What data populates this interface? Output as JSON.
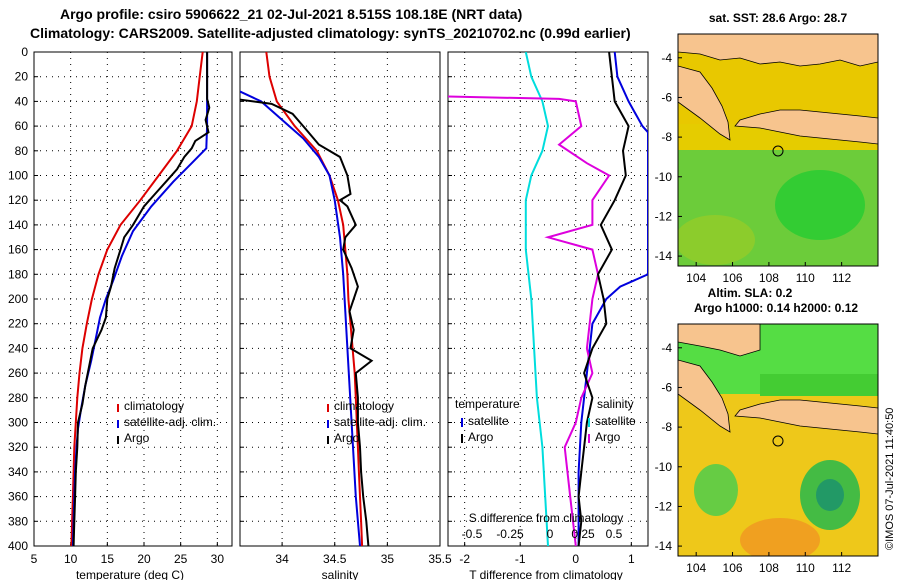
{
  "title": {
    "line1": "Argo profile: csiro 5906622_21 02-Jul-2021 8.515S 108.18E (NRT data)",
    "line2": "Climatology: CARS2009. Satellite-adjusted climatology: synTS_20210702.nc (0.99d earlier)"
  },
  "colors": {
    "climatology": "#dd0000",
    "satellite": "#0000dd",
    "argo": "#000000",
    "t_diff": "#dd00dd",
    "s_diff": "#00dddd",
    "land": "#f7c48e"
  },
  "depth_axis": {
    "ylim": [
      0,
      400
    ],
    "ticks": [
      "0",
      "20",
      "40",
      "60",
      "80",
      "100",
      "120",
      "140",
      "160",
      "180",
      "200",
      "220",
      "240",
      "260",
      "280",
      "300",
      "320",
      "340",
      "360",
      "380",
      "400"
    ]
  },
  "chart_data": [
    {
      "type": "line",
      "id": "temperature",
      "xlabel": "temperature (deg C)",
      "xlim": [
        5,
        32
      ],
      "xticks": [
        "5",
        "10",
        "15",
        "20",
        "25",
        "30"
      ],
      "xtick_values": [
        5,
        10,
        15,
        20,
        25,
        30
      ],
      "legend": [
        "climatology",
        "satellite-adj. clim.",
        "Argo"
      ],
      "series": [
        {
          "name": "climatology",
          "color": "#dd0000",
          "points": [
            [
              28,
              0
            ],
            [
              27.6,
              20
            ],
            [
              27.2,
              40
            ],
            [
              26.5,
              60
            ],
            [
              24.5,
              80
            ],
            [
              22,
              100
            ],
            [
              19.5,
              120
            ],
            [
              16.8,
              140
            ],
            [
              15,
              160
            ],
            [
              13.8,
              180
            ],
            [
              12.9,
              200
            ],
            [
              12.2,
              220
            ],
            [
              11.6,
              240
            ],
            [
              11.2,
              260
            ],
            [
              10.9,
              280
            ],
            [
              10.7,
              300
            ],
            [
              10.5,
              320
            ],
            [
              10.4,
              340
            ],
            [
              10.3,
              360
            ],
            [
              10.2,
              380
            ],
            [
              10.1,
              400
            ]
          ]
        },
        {
          "name": "satellite-adj. clim.",
          "color": "#0000dd",
          "points": [
            [
              28.6,
              0
            ],
            [
              28.6,
              20
            ],
            [
              28.6,
              40
            ],
            [
              28.6,
              60
            ],
            [
              28.5,
              78
            ],
            [
              26.5,
              90
            ],
            [
              24,
              105
            ],
            [
              21,
              125
            ],
            [
              18.5,
              145
            ],
            [
              17,
              165
            ],
            [
              15.8,
              185
            ],
            [
              14.8,
              200
            ],
            [
              14,
              215
            ],
            [
              13.5,
              230
            ],
            [
              12.8,
              250
            ],
            [
              12,
              270
            ],
            [
              11.4,
              290
            ],
            [
              11,
              305
            ],
            [
              10.8,
              320
            ],
            [
              10.6,
              340
            ],
            [
              10.5,
              360
            ],
            [
              10.4,
              380
            ],
            [
              10.3,
              400
            ]
          ]
        },
        {
          "name": "Argo",
          "color": "#000000",
          "points": [
            [
              28.6,
              0
            ],
            [
              28.6,
              20
            ],
            [
              28.6,
              38
            ],
            [
              28.9,
              45
            ],
            [
              28.4,
              55
            ],
            [
              28.8,
              65
            ],
            [
              27,
              72
            ],
            [
              26.5,
              78
            ],
            [
              25.5,
              85
            ],
            [
              24.5,
              95
            ],
            [
              23,
              105
            ],
            [
              21.5,
              115
            ],
            [
              20,
              125
            ],
            [
              18.5,
              140
            ],
            [
              17.3,
              150
            ],
            [
              16.8,
              160
            ],
            [
              16,
              175
            ],
            [
              15.5,
              190
            ],
            [
              15,
              200
            ],
            [
              14.8,
              215
            ],
            [
              14.2,
              225
            ],
            [
              13,
              240
            ],
            [
              12.5,
              255
            ],
            [
              12,
              270
            ],
            [
              11.6,
              285
            ],
            [
              11,
              300
            ],
            [
              10.9,
              320
            ],
            [
              10.7,
              340
            ],
            [
              10.6,
              360
            ],
            [
              10.5,
              380
            ],
            [
              10.4,
              400
            ]
          ]
        }
      ]
    },
    {
      "type": "line",
      "id": "salinity",
      "xlabel": "salinity",
      "xlim": [
        33.6,
        35.5
      ],
      "xticks": [
        "34",
        "34.5",
        "35",
        "35.5"
      ],
      "xtick_values": [
        34,
        34.5,
        35,
        35.5
      ],
      "legend": [
        "climatology",
        "satellite-adj. clim.",
        "Argo"
      ],
      "series": [
        {
          "name": "climatology",
          "color": "#dd0000",
          "points": [
            [
              33.85,
              0
            ],
            [
              33.88,
              20
            ],
            [
              33.95,
              40
            ],
            [
              34.12,
              60
            ],
            [
              34.33,
              80
            ],
            [
              34.45,
              100
            ],
            [
              34.53,
              120
            ],
            [
              34.58,
              140
            ],
            [
              34.6,
              160
            ],
            [
              34.62,
              180
            ],
            [
              34.63,
              200
            ],
            [
              34.65,
              220
            ],
            [
              34.67,
              240
            ],
            [
              34.69,
              260
            ],
            [
              34.7,
              280
            ],
            [
              34.71,
              300
            ],
            [
              34.72,
              320
            ],
            [
              34.73,
              340
            ],
            [
              34.74,
              360
            ],
            [
              34.75,
              380
            ],
            [
              34.76,
              400
            ]
          ]
        },
        {
          "name": "satellite-adj. clim.",
          "color": "#0000dd",
          "points": [
            [
              33.55,
              30
            ],
            [
              33.8,
              40
            ],
            [
              34.0,
              55
            ],
            [
              34.2,
              70
            ],
            [
              34.35,
              85
            ],
            [
              34.45,
              100
            ],
            [
              34.5,
              120
            ],
            [
              34.55,
              150
            ],
            [
              34.58,
              180
            ],
            [
              34.6,
              210
            ],
            [
              34.62,
              240
            ],
            [
              34.64,
              270
            ],
            [
              34.66,
              300
            ],
            [
              34.68,
              330
            ],
            [
              34.7,
              360
            ],
            [
              34.72,
              380
            ],
            [
              34.74,
              400
            ]
          ]
        },
        {
          "name": "Argo",
          "color": "#000000",
          "points": [
            [
              33.55,
              38
            ],
            [
              33.9,
              42
            ],
            [
              34.1,
              50
            ],
            [
              34.2,
              60
            ],
            [
              34.35,
              75
            ],
            [
              34.55,
              85
            ],
            [
              34.62,
              100
            ],
            [
              34.65,
              115
            ],
            [
              34.55,
              120
            ],
            [
              34.62,
              125
            ],
            [
              34.7,
              140
            ],
            [
              34.6,
              150
            ],
            [
              34.58,
              160
            ],
            [
              34.66,
              175
            ],
            [
              34.72,
              190
            ],
            [
              34.64,
              210
            ],
            [
              34.68,
              225
            ],
            [
              34.65,
              240
            ],
            [
              34.85,
              250
            ],
            [
              34.7,
              260
            ],
            [
              34.72,
              280
            ],
            [
              34.72,
              300
            ],
            [
              34.74,
              320
            ],
            [
              34.75,
              340
            ],
            [
              34.77,
              360
            ],
            [
              34.8,
              380
            ],
            [
              34.82,
              400
            ]
          ]
        }
      ]
    },
    {
      "type": "line",
      "id": "difference",
      "xlabel": "T difference from climatology",
      "xlim": [
        -2.3,
        1.3
      ],
      "xticks": [
        "-2",
        "-1",
        "0",
        "1"
      ],
      "xtick_values": [
        -2,
        -1,
        0,
        1
      ],
      "xlabel_top": "S difference from climatology",
      "xticks_top": [
        "-0.5",
        "-0.25",
        "0",
        "0.25",
        "0.5"
      ],
      "legend_left_title": "temperature",
      "legend_left": [
        "satellite",
        "Argo"
      ],
      "legend_right_title": "salinity",
      "legend_right": [
        "satellite",
        "Argo"
      ],
      "series": [
        {
          "name": "temperature satellite",
          "color": "#00dddd",
          "points": [
            [
              -0.9,
              0
            ],
            [
              -0.8,
              20
            ],
            [
              -0.6,
              40
            ],
            [
              -0.5,
              60
            ],
            [
              -0.6,
              80
            ],
            [
              -0.8,
              100
            ],
            [
              -0.9,
              120
            ],
            [
              -0.9,
              160
            ],
            [
              -0.8,
              200
            ],
            [
              -0.75,
              240
            ],
            [
              -0.7,
              280
            ],
            [
              -0.6,
              320
            ],
            [
              -0.55,
              360
            ],
            [
              -0.5,
              400
            ]
          ]
        },
        {
          "name": "salinity satellite",
          "color": "#0000dd",
          "points": [
            [
              0.7,
              0
            ],
            [
              0.75,
              20
            ],
            [
              0.95,
              40
            ],
            [
              1.2,
              60
            ],
            [
              1.3,
              65
            ],
            [
              1.3,
              180
            ],
            [
              0.8,
              190
            ],
            [
              0.55,
              200
            ],
            [
              0.3,
              220
            ],
            [
              0.25,
              240
            ],
            [
              0.2,
              260
            ],
            [
              0.15,
              280
            ],
            [
              0.1,
              300
            ],
            [
              0.05,
              340
            ],
            [
              0.05,
              400
            ]
          ]
        },
        {
          "name": "temperature Argo",
          "color": "#dd00dd",
          "points": [
            [
              -2.3,
              36
            ],
            [
              -0.3,
              38
            ],
            [
              0,
              40
            ],
            [
              0.1,
              60
            ],
            [
              -0.3,
              75
            ],
            [
              0.2,
              90
            ],
            [
              0.6,
              100
            ],
            [
              0.3,
              120
            ],
            [
              0.3,
              140
            ],
            [
              -0.5,
              150
            ],
            [
              0.3,
              160
            ],
            [
              0.4,
              180
            ],
            [
              0.3,
              200
            ],
            [
              0.2,
              240
            ],
            [
              0.3,
              260
            ],
            [
              0.1,
              280
            ],
            [
              0,
              300
            ],
            [
              -0.2,
              320
            ],
            [
              -0.1,
              360
            ],
            [
              0,
              400
            ]
          ]
        },
        {
          "name": "salinity Argo",
          "color": "#000000",
          "points": [
            [
              0.6,
              0
            ],
            [
              0.65,
              20
            ],
            [
              0.7,
              40
            ],
            [
              0.95,
              60
            ],
            [
              0.85,
              80
            ],
            [
              0.9,
              100
            ],
            [
              0.7,
              120
            ],
            [
              0.45,
              140
            ],
            [
              0.65,
              160
            ],
            [
              0.4,
              180
            ],
            [
              0.5,
              200
            ],
            [
              0.55,
              220
            ],
            [
              0.3,
              240
            ],
            [
              0.15,
              260
            ],
            [
              0.3,
              280
            ],
            [
              0.2,
              300
            ],
            [
              0.15,
              320
            ],
            [
              0.1,
              340
            ],
            [
              0.05,
              360
            ],
            [
              0.1,
              380
            ],
            [
              0.05,
              400
            ]
          ]
        }
      ]
    },
    {
      "type": "heatmap",
      "id": "sst-map",
      "title": "sat. SST: 28.6 Argo: 28.7",
      "xticks": [
        "104",
        "106",
        "108",
        "110",
        "112"
      ],
      "xtick_values": [
        104,
        106,
        108,
        110,
        112
      ],
      "yticks": [
        "-4",
        "-6",
        "-8",
        "-10",
        "-12",
        "-14"
      ],
      "ytick_values": [
        -4,
        -6,
        -8,
        -10,
        -12,
        -14
      ],
      "lon_range": [
        103,
        114
      ],
      "lat_range": [
        -14.5,
        -2.8
      ],
      "argo_position": [
        108.18,
        -8.515
      ]
    },
    {
      "type": "heatmap",
      "id": "sla-map",
      "title": "Altim. SLA: 0.2",
      "subtitle": "Argo h1000: 0.14 h2000: 0.12",
      "xticks": [
        "104",
        "106",
        "108",
        "110",
        "112"
      ],
      "xtick_values": [
        104,
        106,
        108,
        110,
        112
      ],
      "yticks": [
        "-4",
        "-6",
        "-8",
        "-10",
        "-12",
        "-14"
      ],
      "ytick_values": [
        -4,
        -6,
        -8,
        -10,
        -12,
        -14
      ],
      "lon_range": [
        103,
        114
      ],
      "lat_range": [
        -14.5,
        -2.8
      ],
      "argo_position": [
        108.18,
        -8.515
      ]
    }
  ],
  "credit": "©IMOS 07-Jul-2021 11:40:50"
}
